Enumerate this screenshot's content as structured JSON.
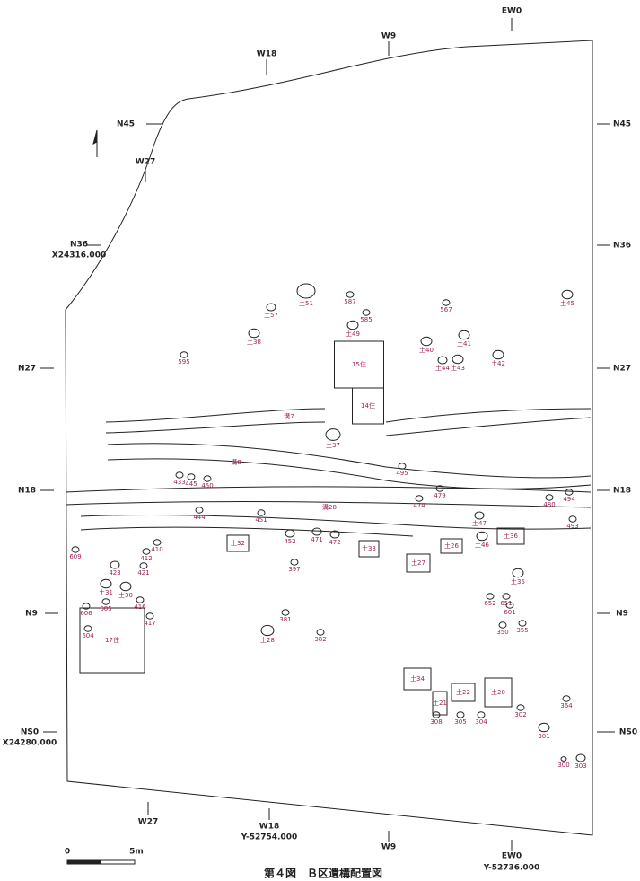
{
  "title": "第４図　Ｂ区遺構配置図",
  "grid_labels": [
    "EW0",
    "W9",
    "W18",
    "N45",
    "W27",
    "N36",
    "X24316.000",
    "N27",
    "N18",
    "N9",
    "NS0",
    "X24280.000",
    "N45",
    "N36",
    "N27",
    "N18",
    "N9",
    "NS0",
    "W27",
    "W18",
    "Y-52754.000",
    "W9",
    "EW0",
    "Y-52736.000"
  ],
  "scale": {
    "start": "0",
    "end": "5m"
  },
  "features": [
    "17住",
    "15住",
    "14住",
    "溝7",
    "溝8",
    "溝28",
    "土37",
    "土33",
    "土27",
    "土26",
    "土36",
    "土34",
    "土22",
    "土21",
    "土20",
    "土30",
    "土31",
    "土32",
    "土28",
    "土35",
    "土47",
    "土46",
    "土49",
    "土41",
    "土43",
    "土42",
    "土40",
    "土38",
    "土57",
    "土51",
    "土45",
    "土44",
    "495",
    "479",
    "474",
    "480",
    "493",
    "494",
    "301",
    "300",
    "303",
    "304",
    "302",
    "305",
    "308",
    "364",
    "585",
    "587",
    "567",
    "595",
    "609",
    "604",
    "606",
    "605",
    "410",
    "412",
    "423",
    "421",
    "416",
    "417",
    "444",
    "445",
    "433",
    "450",
    "451",
    "452",
    "471",
    "472",
    "397",
    "381",
    "382",
    "355",
    "350",
    "651",
    "652",
    "601"
  ]
}
